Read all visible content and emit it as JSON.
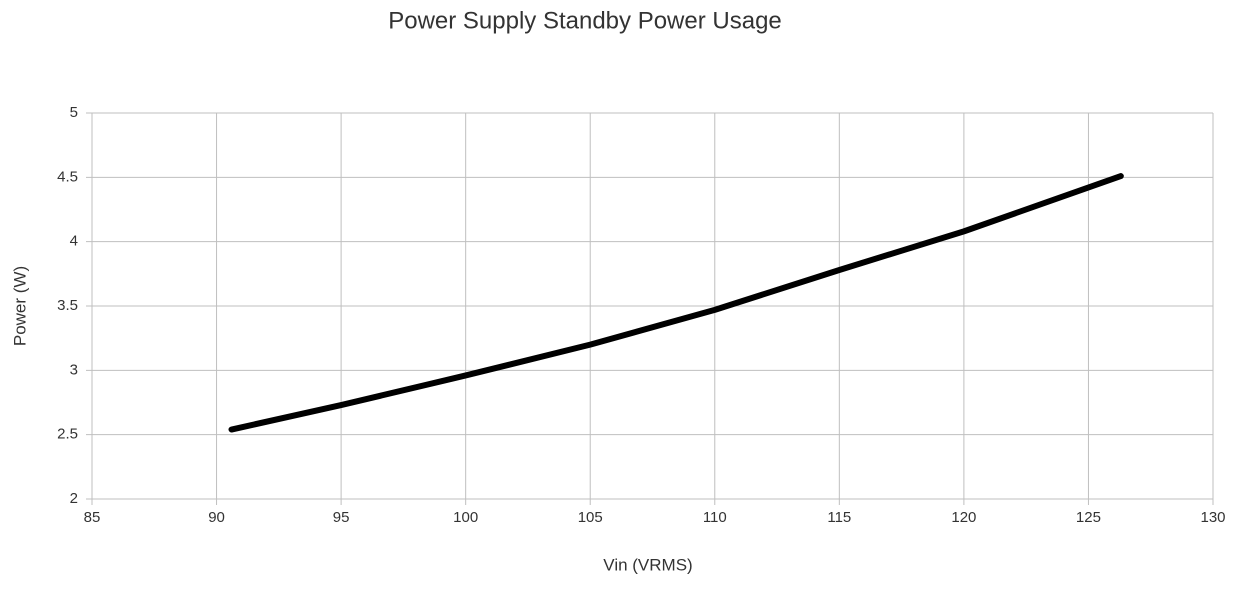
{
  "chart_data": {
    "type": "line",
    "title": "Power Supply Standby Power Usage",
    "x_label": "Vin (VRMS)",
    "y_label": "Power (W)",
    "x": [
      90.6,
      95,
      100,
      105,
      110,
      115,
      120,
      126.3
    ],
    "series": [
      {
        "color": "#000000",
        "values": [
          2.54,
          2.73,
          2.96,
          3.2,
          3.47,
          3.78,
          4.08,
          4.51
        ]
      }
    ],
    "xlim": [
      85,
      130
    ],
    "xticks": [
      85,
      90,
      95,
      100,
      105,
      110,
      115,
      120,
      125,
      130
    ],
    "ylim": [
      2,
      5
    ],
    "yticks": [
      2,
      2.5,
      3,
      3.5,
      4,
      4.5,
      5
    ],
    "grid": true
  }
}
